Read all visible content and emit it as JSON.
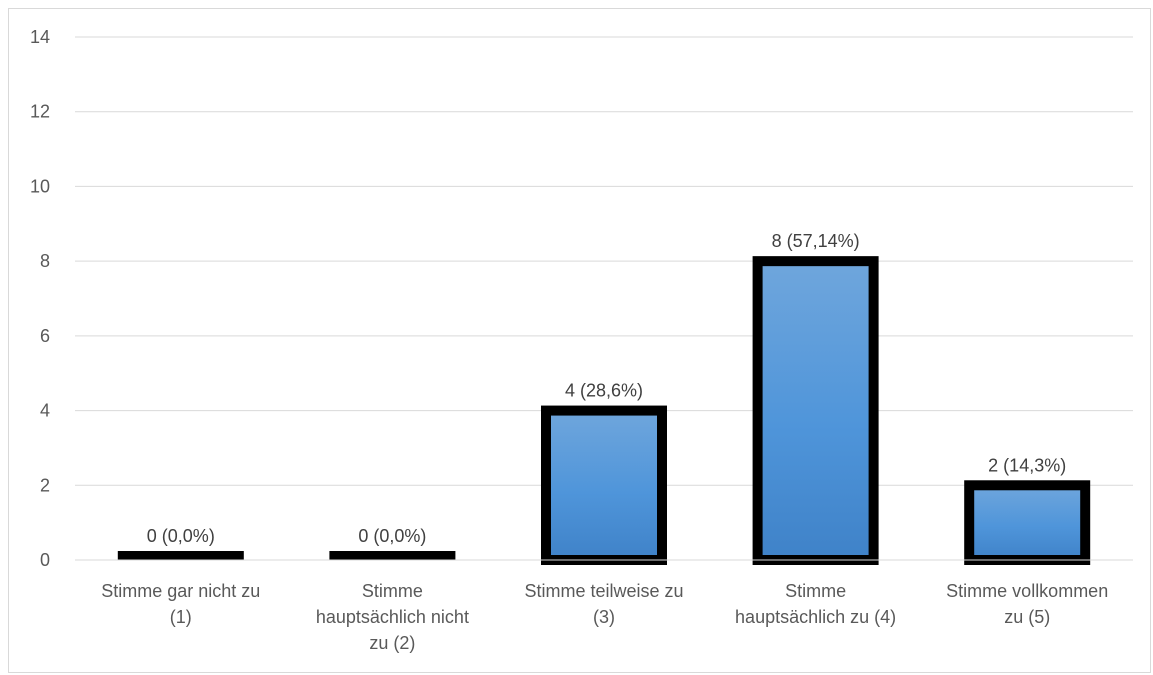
{
  "chart_data": {
    "type": "bar",
    "categories": [
      [
        "Stimme gar nicht zu",
        "(1)"
      ],
      [
        "Stimme",
        "hauptsächlich nicht",
        "zu (2)"
      ],
      [
        "Stimme teilweise zu",
        "(3)"
      ],
      [
        "Stimme",
        "hauptsächlich zu (4)"
      ],
      [
        "Stimme vollkommen",
        "zu (5)"
      ]
    ],
    "values": [
      0,
      0,
      4,
      8,
      2
    ],
    "data_labels": [
      "0 (0,0%)",
      "0 (0,0%)",
      "4 (28,6%)",
      "8 (57,14%)",
      "2 (14,3%)"
    ],
    "ylim": [
      0,
      14
    ],
    "yticks": [
      0,
      2,
      4,
      6,
      8,
      10,
      12,
      14
    ],
    "grid": true,
    "legend": "none",
    "colors": {
      "bar_top": "#6fa6dc",
      "bar_mid": "#4f95da",
      "bar_bottom": "#3f82c8",
      "bar_border": "#000000",
      "grid": "#d9d9d9",
      "text": "#595959"
    }
  }
}
